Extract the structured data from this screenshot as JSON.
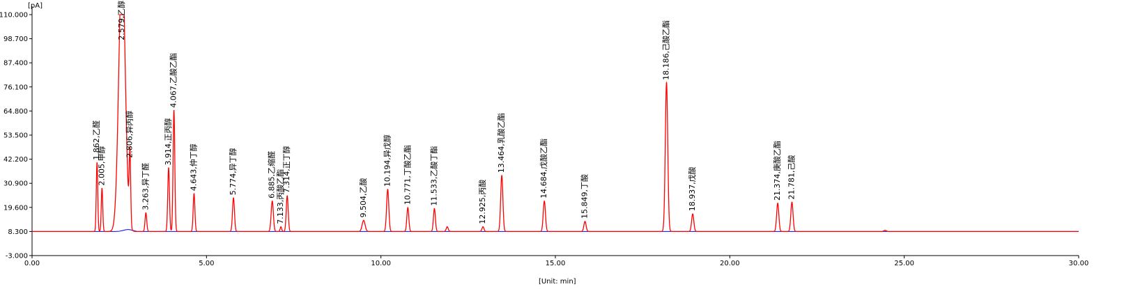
{
  "chart_data": {
    "type": "line",
    "y_unit_label": "[pA]",
    "x_unit_label": "[Unit: min]",
    "xlim": [
      0,
      30
    ],
    "ylim": [
      -3.0,
      110.0
    ],
    "x_ticks": [
      "0.00",
      "5.00",
      "10.00",
      "15.00",
      "20.00",
      "25.00",
      "30.00"
    ],
    "x_tick_values": [
      0,
      5,
      10,
      15,
      20,
      25,
      30
    ],
    "y_ticks": [
      "-3.000",
      "8.300",
      "19.600",
      "30.900",
      "42.200",
      "53.500",
      "64.800",
      "76.100",
      "87.400",
      "98.700",
      "110.000"
    ],
    "y_tick_values": [
      -3.0,
      8.3,
      19.6,
      30.9,
      42.2,
      53.5,
      64.8,
      76.1,
      87.4,
      98.7,
      110.0
    ],
    "baseline": 8.3,
    "colors": {
      "main_trace": "#ff0000",
      "integration_baseline": "#0000ff",
      "axis": "#000000"
    },
    "peaks": [
      {
        "rt": 1.862,
        "label": "1.862,乙醛",
        "height": 40.5,
        "width": 0.03
      },
      {
        "rt": 2.005,
        "label": "2.005,甲醇",
        "height": 28.5,
        "width": 0.03
      },
      {
        "rt": 2.579,
        "label": "2.579,乙醇",
        "height": 110.0,
        "width": 0.13,
        "flat_top": true
      },
      {
        "rt": 2.806,
        "label": "2.806,异丙醇",
        "height": 41.5,
        "width": 0.03
      },
      {
        "rt": 3.263,
        "label": "3.263,异丁醛",
        "height": 17.0,
        "width": 0.035
      },
      {
        "rt": 3.914,
        "label": "3.914,正丙醇",
        "height": 38.0,
        "width": 0.035
      },
      {
        "rt": 4.067,
        "label": "4.067,乙酸乙酯",
        "height": 65.0,
        "width": 0.035
      },
      {
        "rt": 4.643,
        "label": "4.643,仲丁醇",
        "height": 26.0,
        "width": 0.035
      },
      {
        "rt": 5.774,
        "label": "5.774,异丁醇",
        "height": 24.0,
        "width": 0.04
      },
      {
        "rt": 6.885,
        "label": "6.885,乙缩醛",
        "height": 22.5,
        "width": 0.045
      },
      {
        "rt": 7.133,
        "label": "7.133,丙酸乙酯",
        "height": 10.5,
        "width": 0.03
      },
      {
        "rt": 7.314,
        "label": "7.314,正丁醇",
        "height": 25.0,
        "width": 0.04
      },
      {
        "rt": 9.504,
        "label": "9.504,乙酸",
        "height": 13.5,
        "width": 0.06
      },
      {
        "rt": 10.194,
        "label": "10.194,异戊醇",
        "height": 28.0,
        "width": 0.045
      },
      {
        "rt": 10.771,
        "label": "10.771,丁酸乙酯",
        "height": 19.5,
        "width": 0.04
      },
      {
        "rt": 11.533,
        "label": "11.533,乙酸丁酯",
        "height": 19.0,
        "width": 0.04
      },
      {
        "rt": 11.9,
        "label": "",
        "height": 10.5,
        "width": 0.04
      },
      {
        "rt": 12.925,
        "label": "12.925,丙酸",
        "height": 10.5,
        "width": 0.04
      },
      {
        "rt": 13.464,
        "label": "13.464,乳酸乙酯",
        "height": 34.5,
        "width": 0.045
      },
      {
        "rt": 14.684,
        "label": "14.684,戊酸乙酯",
        "height": 22.5,
        "width": 0.045
      },
      {
        "rt": 15.849,
        "label": "15.849,丁酸",
        "height": 13.0,
        "width": 0.045
      },
      {
        "rt": 18.186,
        "label": "18.186,己酸乙酯",
        "height": 78.0,
        "width": 0.05
      },
      {
        "rt": 18.937,
        "label": "18.937,戊酸",
        "height": 16.5,
        "width": 0.045
      },
      {
        "rt": 21.374,
        "label": "21.374,庚酸乙酯",
        "height": 21.5,
        "width": 0.045
      },
      {
        "rt": 21.781,
        "label": "21.781,己酸",
        "height": 22.0,
        "width": 0.045
      },
      {
        "rt": 24.45,
        "label": "",
        "height": 8.8,
        "width": 0.05
      }
    ]
  }
}
